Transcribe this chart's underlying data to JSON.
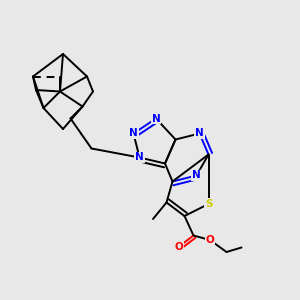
{
  "bg_color": "#e8e8e8",
  "bond_color": "#000000",
  "n_color": "#0000ff",
  "s_color": "#cccc00",
  "o_color": "#ff0000",
  "lw": 1.4,
  "figsize": [
    3.0,
    3.0
  ],
  "dpi": 100,
  "xlim": [
    0,
    10
  ],
  "ylim": [
    0,
    10
  ],
  "db_off": 0.13
}
